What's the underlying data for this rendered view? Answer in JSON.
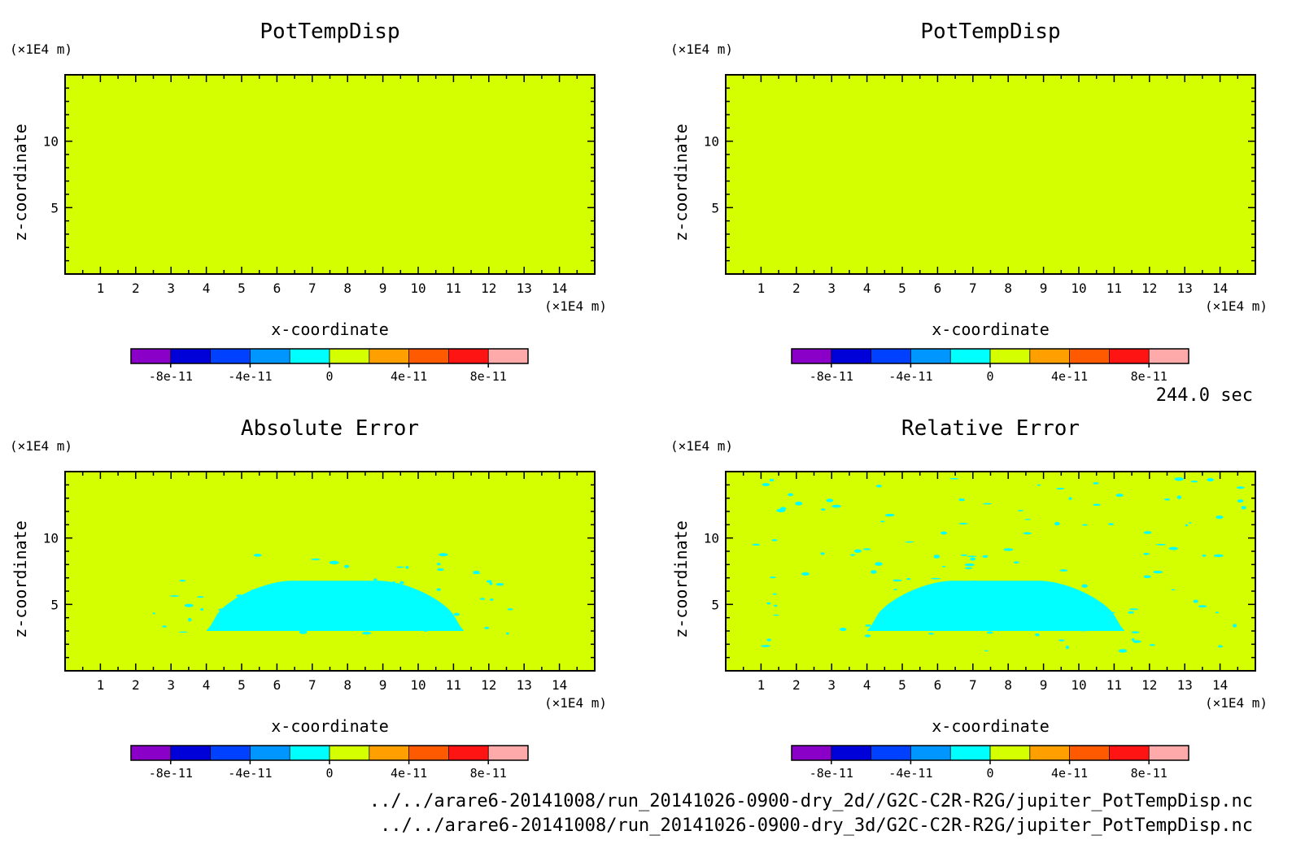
{
  "chart_data": [
    {
      "type": "heatmap",
      "title": "PotTempDisp",
      "xlabel": "x-coordinate",
      "ylabel": "z-coordinate",
      "x_unit": "(×1E4 m)",
      "y_unit": "(×1E4 m)",
      "xlim": [
        0,
        15
      ],
      "ylim": [
        0,
        15
      ],
      "xticks": [
        "1",
        "2",
        "3",
        "4",
        "5",
        "6",
        "7",
        "8",
        "9",
        "10",
        "11",
        "12",
        "13",
        "14"
      ],
      "yticks": [
        "5",
        "10"
      ],
      "field": "uniform value 0 (level 0 to 2e-11)",
      "regions": []
    },
    {
      "type": "heatmap",
      "title": "PotTempDisp",
      "xlabel": "x-coordinate",
      "ylabel": "z-coordinate",
      "x_unit": "(×1E4 m)",
      "y_unit": "(×1E4 m)",
      "xlim": [
        0,
        15
      ],
      "ylim": [
        0,
        15
      ],
      "xticks": [
        "1",
        "2",
        "3",
        "4",
        "5",
        "6",
        "7",
        "8",
        "9",
        "10",
        "11",
        "12",
        "13",
        "14"
      ],
      "yticks": [
        "5",
        "10"
      ],
      "field": "uniform value 0 (level 0 to 2e-11)",
      "regions": []
    },
    {
      "type": "heatmap",
      "title": "Absolute Error",
      "xlabel": "x-coordinate",
      "ylabel": "z-coordinate",
      "x_unit": "(×1E4 m)",
      "y_unit": "(×1E4 m)",
      "xlim": [
        0,
        15
      ],
      "ylim": [
        0,
        15
      ],
      "xticks": [
        "1",
        "2",
        "3",
        "4",
        "5",
        "6",
        "7",
        "8",
        "9",
        "10",
        "11",
        "12",
        "13",
        "14"
      ],
      "yticks": [
        "5",
        "10"
      ],
      "field": "mostly level 0 to 2e-11; dome of level -2e-11 to 0",
      "regions": [
        {
          "level": "-2e-11 to 0",
          "shape": "dome",
          "x_from": 4.0,
          "x_to": 11.3,
          "z_base": 3.0,
          "z_top": 6.9
        },
        {
          "level": "-2e-11 to 0",
          "shape": "speckles",
          "x_from": 2.5,
          "x_to": 12.8,
          "z_from": 2.8,
          "z_to": 8.8
        }
      ]
    },
    {
      "type": "heatmap",
      "title": "Relative Error",
      "xlabel": "x-coordinate",
      "ylabel": "z-coordinate",
      "x_unit": "(×1E4 m)",
      "y_unit": "(×1E4 m)",
      "xlim": [
        0,
        15
      ],
      "ylim": [
        0,
        15
      ],
      "xticks": [
        "1",
        "2",
        "3",
        "4",
        "5",
        "6",
        "7",
        "8",
        "9",
        "10",
        "11",
        "12",
        "13",
        "14"
      ],
      "yticks": [
        "5",
        "10"
      ],
      "field": "mostly level 0 to 2e-11; dome of level -2e-11 to 0",
      "regions": [
        {
          "level": "-2e-11 to 0",
          "shape": "dome",
          "x_from": 4.0,
          "x_to": 11.3,
          "z_base": 3.0,
          "z_top": 6.9
        },
        {
          "level": "-2e-11 to 0",
          "shape": "speckles",
          "x_from": 0.5,
          "x_to": 14.8,
          "z_from": 1.5,
          "z_to": 14.8
        }
      ]
    }
  ],
  "colorbar": {
    "levels": [
      "-1e-10",
      "-8e-11",
      "-6e-11",
      "-4e-11",
      "-2e-11",
      "0",
      "2e-11",
      "4e-11",
      "6e-11",
      "8e-11",
      "1e-10"
    ],
    "colors": [
      "#8a00c8",
      "#0000d8",
      "#0040ff",
      "#0096ff",
      "#00ffff",
      "#d4ff00",
      "#ffa000",
      "#ff5a00",
      "#ff1414",
      "#ffaaaa"
    ],
    "tick_labels": [
      "-8e-11",
      "-4e-11",
      "0",
      "4e-11",
      "8e-11"
    ]
  },
  "time_label": "244.0 sec",
  "footnotes": [
    "../../arare6-20141008/run_20141026-0900-dry_2d//G2C-C2R-R2G/jupiter_PotTempDisp.nc",
    "../../arare6-20141008/run_20141026-0900-dry_3d/G2C-C2R-R2G/jupiter_PotTempDisp.nc"
  ]
}
